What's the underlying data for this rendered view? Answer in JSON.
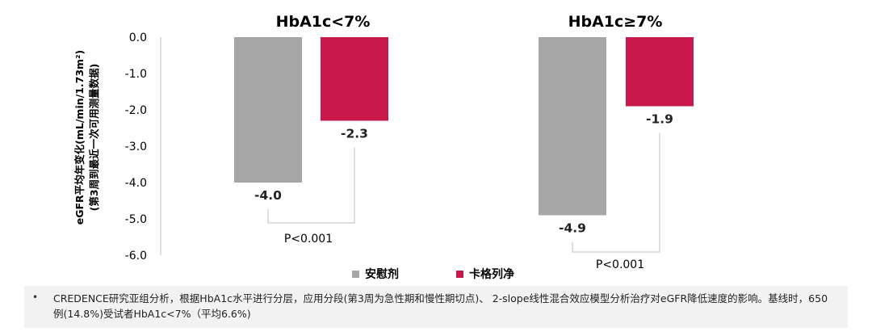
{
  "chart_data": {
    "type": "bar",
    "ylabel_line1": "eGFR平均年变化(mL/min/1.73m²)",
    "ylabel_line2": "(第3周到最近一次可用测量数据)",
    "ylim": [
      -6.0,
      0.0
    ],
    "yticks": [
      "0.0",
      "-1.0",
      "-2.0",
      "-3.0",
      "-4.0",
      "-5.0",
      "-6.0"
    ],
    "categories": [
      "HbA1c<7%",
      "HbA1c≥7%"
    ],
    "series": [
      {
        "name": "安慰剂",
        "color": "#a6a6a6",
        "values": [
          -4.0,
          -4.9
        ],
        "labels": [
          "-4.0",
          "-4.9"
        ]
      },
      {
        "name": "卡格列净",
        "color": "#c8174a",
        "values": [
          -2.3,
          -1.9
        ],
        "labels": [
          "-2.3",
          "-1.9"
        ]
      }
    ],
    "annotations": [
      "P<0.001",
      "P<0.001"
    ]
  },
  "footnote": {
    "bullet": "•",
    "text": "CREDENCE研究亚组分析，根据HbA1c水平进行分层，应用分段(第3周为急性期和慢性期切点)、 2-slope线性混合效应模型分析治疗对eGFR降低速度的影响。基线时，650例(14.8%)受试者HbA1c<7%（平均6.6%)"
  }
}
